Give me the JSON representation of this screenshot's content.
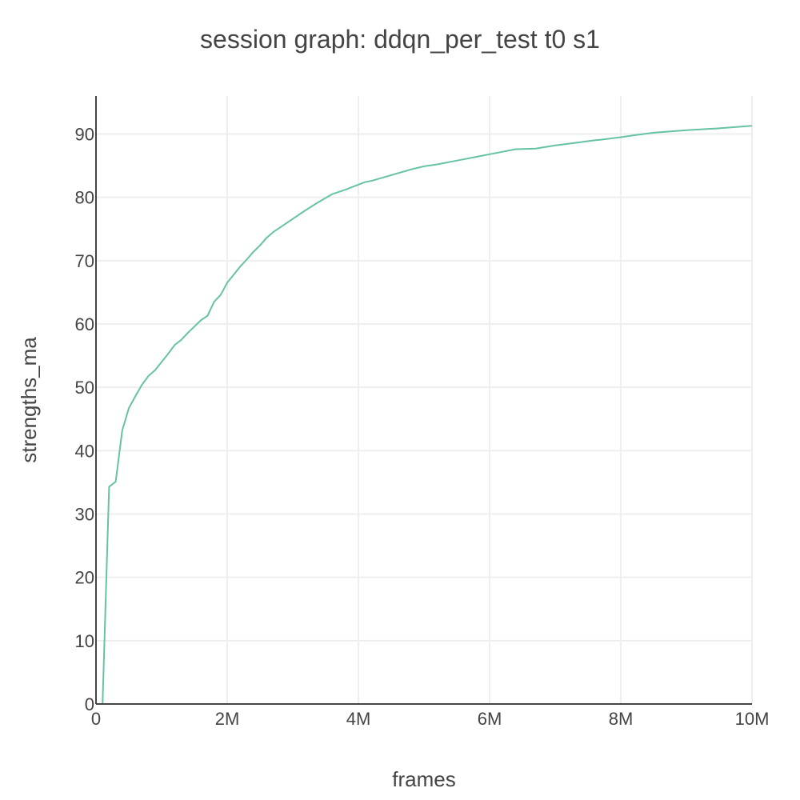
{
  "chart_data": {
    "type": "line",
    "title": "session graph: ddqn_per_test t0 s1",
    "xlabel": "frames",
    "ylabel": "strengths_ma",
    "xlim": [
      0,
      10000000
    ],
    "ylim": [
      0,
      96
    ],
    "grid": true,
    "x_ticks": [
      {
        "value": 0,
        "label": "0"
      },
      {
        "value": 2000000,
        "label": "2M"
      },
      {
        "value": 4000000,
        "label": "4M"
      },
      {
        "value": 6000000,
        "label": "6M"
      },
      {
        "value": 8000000,
        "label": "8M"
      },
      {
        "value": 10000000,
        "label": "10M"
      }
    ],
    "y_ticks": [
      {
        "value": 0,
        "label": "0"
      },
      {
        "value": 10,
        "label": "10"
      },
      {
        "value": 20,
        "label": "20"
      },
      {
        "value": 30,
        "label": "30"
      },
      {
        "value": 40,
        "label": "40"
      },
      {
        "value": 50,
        "label": "50"
      },
      {
        "value": 60,
        "label": "60"
      },
      {
        "value": 70,
        "label": "70"
      },
      {
        "value": 80,
        "label": "80"
      },
      {
        "value": 90,
        "label": "90"
      }
    ],
    "series": [
      {
        "name": "strengths_ma",
        "color": "#66c2a5",
        "x": [
          100000,
          200000,
          300000,
          400000,
          500000,
          600000,
          700000,
          800000,
          900000,
          1000000,
          1100000,
          1200000,
          1300000,
          1400000,
          1500000,
          1600000,
          1700000,
          1800000,
          1900000,
          2000000,
          2100000,
          2200000,
          2300000,
          2400000,
          2500000,
          2600000,
          2700000,
          2800000,
          3000000,
          3200000,
          3400000,
          3600000,
          3800000,
          4000000,
          4100000,
          4200000,
          4400000,
          4600000,
          4800000,
          5000000,
          5200000,
          5400000,
          5600000,
          5800000,
          6000000,
          6200000,
          6400000,
          6700000,
          7000000,
          7300000,
          7600000,
          7700000,
          8000000,
          8200000,
          8500000,
          9000000,
          9500000,
          10000000
        ],
        "values": [
          0,
          34.3,
          35.1,
          43.2,
          46.7,
          48.6,
          50.4,
          51.8,
          52.7,
          54.0,
          55.3,
          56.7,
          57.5,
          58.6,
          59.6,
          60.6,
          61.3,
          63.5,
          64.6,
          66.5,
          67.8,
          69.1,
          70.2,
          71.4,
          72.4,
          73.6,
          74.5,
          75.2,
          76.6,
          78.0,
          79.3,
          80.5,
          81.2,
          82.0,
          82.4,
          82.6,
          83.2,
          83.8,
          84.4,
          84.9,
          85.2,
          85.6,
          86.0,
          86.4,
          86.8,
          87.2,
          87.6,
          87.7,
          88.2,
          88.6,
          89.0,
          89.1,
          89.5,
          89.8,
          90.2,
          90.6,
          90.9,
          91.3
        ]
      }
    ]
  }
}
